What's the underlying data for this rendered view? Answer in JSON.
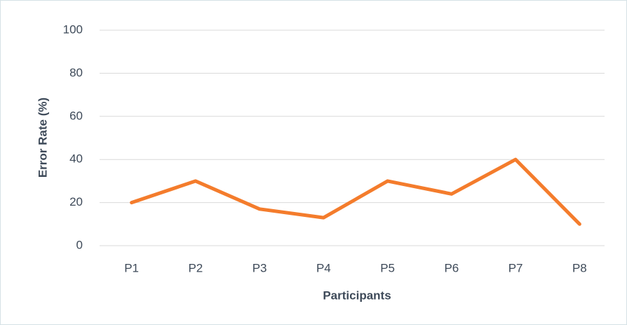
{
  "chart_data": {
    "type": "line",
    "x_label": "Participants",
    "y_label": "Error Rate (%)",
    "categories": [
      "P1",
      "P2",
      "P3",
      "P4",
      "P5",
      "P6",
      "P7",
      "P8"
    ],
    "series": [
      {
        "name": "Error Rate",
        "color": "#f47c2c",
        "values": [
          20,
          30,
          17,
          13,
          30,
          24,
          40,
          10
        ]
      }
    ],
    "ylim": [
      0,
      100
    ],
    "yticks": [
      0,
      20,
      40,
      60,
      80,
      100
    ],
    "grid": true
  }
}
